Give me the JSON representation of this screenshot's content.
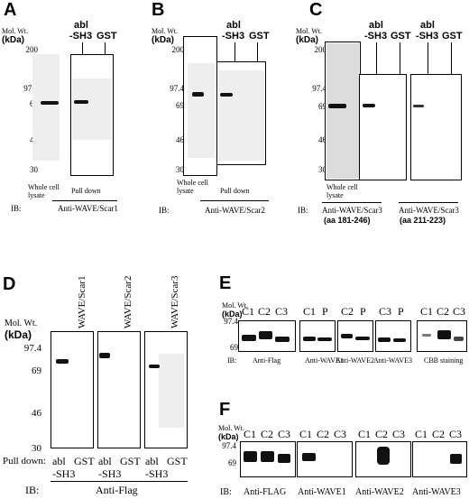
{
  "panelA": {
    "label": "A",
    "mw_title": "Mol. Wt.",
    "mw_unit": "(kDa)",
    "markers": [
      "200",
      "97.4",
      "69",
      "46",
      "30"
    ],
    "lane_labels": [
      "Whole cell lysate",
      "Pull down"
    ],
    "col_header_1": "abl",
    "col_header_2": "-SH3",
    "col_header_3": "GST",
    "ib_label": "IB:",
    "antibody": "Anti-WAVE/Scar1"
  },
  "panelB": {
    "label": "B",
    "mw_title": "Mol. Wt.",
    "mw_unit": "(kDa)",
    "markers": [
      "200",
      "97.4",
      "69",
      "46",
      "30"
    ],
    "lane_labels": [
      "Whole cell lysate",
      "Pull down"
    ],
    "col_header_1": "abl",
    "col_header_2": "-SH3",
    "col_header_3": "GST",
    "ib_label": "IB:",
    "antibody": "Anti-WAVE/Scar2"
  },
  "panelC": {
    "label": "C",
    "mw_title": "Mol. Wt.",
    "mw_unit": "(kDa)",
    "markers": [
      "200",
      "97.4",
      "69",
      "46",
      "30"
    ],
    "lane_labels": [
      "Whole cell lysate"
    ],
    "col_header_1": "abl",
    "col_header_2": "-SH3",
    "col_header_3": "GST",
    "ib_label": "IB:",
    "antibody_1": "Anti-WAVE/Scar3",
    "antibody_1_range": "(aa 181-246)",
    "antibody_2": "Anti-WAVE/Scar3",
    "antibody_2_range": "(aa 211-223)"
  },
  "panelD": {
    "label": "D",
    "mw_title": "Mol. Wt.",
    "mw_unit": "(kDa)",
    "markers": [
      "97.4",
      "69",
      "46",
      "30"
    ],
    "column_titles": [
      "WAVE/Scar1",
      "WAVE/Scar2",
      "WAVE/Scar3"
    ],
    "pull_down_label": "Pull down:",
    "lane_abl": "abl",
    "lane_gst": "GST",
    "lane_sh3": "-SH3",
    "ib_label": "IB:",
    "antibody": "Anti-Flag"
  },
  "panelE": {
    "label": "E",
    "mw_title": "Mol. Wt.",
    "mw_unit": "(kDa)",
    "markers": [
      "97.4",
      "69"
    ],
    "groups": [
      {
        "lanes": [
          "C1",
          "C2",
          "C3"
        ],
        "antibody": "Anti-Flag"
      },
      {
        "lanes": [
          "C1",
          "P"
        ],
        "antibody": "Anti-WAVE1"
      },
      {
        "lanes": [
          "C2",
          "P"
        ],
        "antibody": "Anti-WAVE2"
      },
      {
        "lanes": [
          "C3",
          "P"
        ],
        "antibody": "Anti-WAVE3"
      },
      {
        "lanes": [
          "C1",
          "C2",
          "C3"
        ],
        "antibody": "CBB staining"
      }
    ],
    "ib_label": "IB:"
  },
  "panelF": {
    "label": "F",
    "mw_title": "Mol. Wt.",
    "mw_unit": "(kDa)",
    "markers": [
      "97.4",
      "69"
    ],
    "groups": [
      {
        "lanes": [
          "C1",
          "C2",
          "C3"
        ],
        "antibody": "Anti-FLAG"
      },
      {
        "lanes": [
          "C1",
          "C2",
          "C3"
        ],
        "antibody": "Anti-WAVE1"
      },
      {
        "lanes": [
          "C1",
          "C2",
          "C3"
        ],
        "antibody": "Anti-WAVE2"
      },
      {
        "lanes": [
          "C1",
          "C2",
          "C3"
        ],
        "antibody": "Anti-WAVE3"
      }
    ],
    "ib_label": "IB:"
  }
}
